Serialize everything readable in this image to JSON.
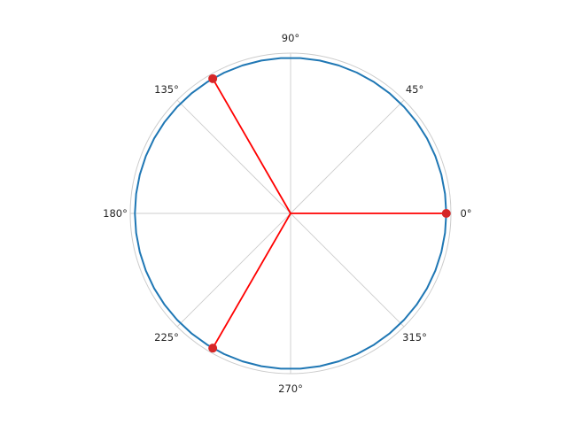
{
  "chart_data": {
    "type": "polar",
    "grid": true,
    "theta_tick_labels": [
      "0°",
      "45°",
      "90°",
      "135°",
      "180°",
      "225°",
      "270°",
      "315°"
    ],
    "theta_ticks_deg": [
      0,
      45,
      90,
      135,
      180,
      225,
      270,
      315
    ],
    "r_tick_labels": [],
    "rlim": [
      0,
      1.03
    ],
    "series": [
      {
        "type": "line",
        "color": "#1f77b4",
        "r": 1.0,
        "theta_range_deg": [
          0,
          360
        ],
        "segments": 50
      },
      {
        "type": "spokes_with_markers",
        "color": "#ff0000",
        "marker_color": "#d62728",
        "points": [
          {
            "theta_deg": 0,
            "r": 1.0
          },
          {
            "theta_deg": 120,
            "r": 1.0
          },
          {
            "theta_deg": 240,
            "r": 1.0
          }
        ]
      }
    ],
    "colors": {
      "grid": "#cccccc",
      "frame": "#cccccc",
      "text": "#262626"
    }
  }
}
